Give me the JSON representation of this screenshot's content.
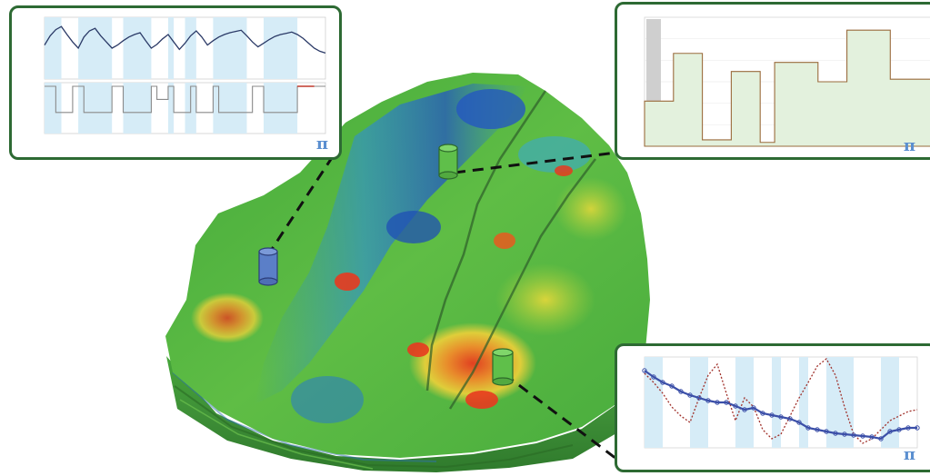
{
  "colors": {
    "panel_border": "#2d6a33",
    "shade": "#d6ecf7",
    "pressure_line": "#2b3a67",
    "rate_line": "#8a8a8a",
    "hist_fill": "#e3f1dd",
    "hist_line": "#9a6b3c",
    "hist_grey": "#cfcfcf",
    "match_points": "#3b4fa8",
    "match_dotted": "#a0302a",
    "logo": "#5b8fd0"
  },
  "icons": {
    "logo": "pi-logo-icon",
    "well": "well-cylinder-icon"
  },
  "logo_glyph": "π",
  "wells": [
    {
      "name": "well-blue",
      "color": "#5b7fc8"
    },
    {
      "name": "well-green-top",
      "color": "#5fbf4a"
    },
    {
      "name": "well-green-bottom",
      "color": "#5fbf4a"
    }
  ],
  "chart_data": [
    {
      "type": "line",
      "panel": "top-left",
      "x": [
        0,
        1,
        2,
        3,
        4,
        5,
        6,
        7,
        8,
        9,
        10,
        11,
        12,
        13,
        14,
        15,
        16,
        17,
        18,
        19,
        20,
        21,
        22,
        23,
        24,
        25,
        26,
        27,
        28,
        29,
        30,
        31,
        32,
        33,
        34,
        35,
        36,
        37,
        38,
        39,
        40,
        41,
        42,
        43,
        44,
        45,
        46,
        47,
        48,
        49,
        50
      ],
      "series": [
        {
          "values": [
            0.55,
            0.7,
            0.8,
            0.85,
            0.72,
            0.6,
            0.5,
            0.68,
            0.78,
            0.82,
            0.7,
            0.6,
            0.5,
            0.55,
            0.62,
            0.68,
            0.72,
            0.75,
            0.62,
            0.5,
            0.56,
            0.65,
            0.72,
            0.6,
            0.48,
            0.58,
            0.7,
            0.78,
            0.68,
            0.55,
            0.62,
            0.68,
            0.72,
            0.75,
            0.77,
            0.79,
            0.7,
            0.6,
            0.52,
            0.58,
            0.64,
            0.69,
            0.72,
            0.74,
            0.76,
            0.72,
            0.66,
            0.58,
            0.5,
            0.45,
            0.42
          ]
        },
        {
          "values": [
            0.0,
            0.0,
            -0.6,
            -0.6,
            -0.6,
            0.0,
            0.0,
            -0.6,
            -0.6,
            -0.6,
            -0.6,
            -0.6,
            0.0,
            0.0,
            -0.6,
            -0.6,
            -0.6,
            -0.6,
            -0.6,
            0.0,
            -0.3,
            -0.3,
            0.0,
            -0.6,
            -0.6,
            -0.6,
            0.0,
            -0.6,
            -0.6,
            -0.6,
            0.0,
            -0.6,
            -0.6,
            -0.6,
            -0.6,
            -0.6,
            -0.6,
            0.0,
            0.0,
            -0.6,
            -0.6,
            -0.6,
            -0.6,
            -0.6,
            -0.6,
            0.0,
            0.0,
            0.0,
            0.0,
            0.0,
            0.0
          ]
        }
      ],
      "shaded_intervals": [
        [
          0,
          3
        ],
        [
          6,
          12
        ],
        [
          14,
          19
        ],
        [
          22,
          23
        ],
        [
          25,
          27
        ],
        [
          30,
          36
        ],
        [
          39,
          45
        ]
      ]
    },
    {
      "type": "area",
      "panel": "top-right",
      "x": [
        0,
        1,
        2,
        3,
        4,
        5,
        6,
        7,
        8,
        9,
        10,
        11,
        12,
        13,
        14,
        15,
        16,
        17,
        18,
        19,
        20
      ],
      "values": [
        0.35,
        0.35,
        0.72,
        0.72,
        0.05,
        0.05,
        0.58,
        0.58,
        0.03,
        0.65,
        0.65,
        0.65,
        0.5,
        0.5,
        0.9,
        0.9,
        0.9,
        0.52,
        0.52,
        0.52,
        0.52
      ],
      "ylim": [
        0,
        1
      ]
    },
    {
      "type": "line",
      "panel": "bottom-right",
      "x": [
        0,
        1,
        2,
        3,
        4,
        5,
        6,
        7,
        8,
        9,
        10,
        11,
        12,
        13,
        14,
        15,
        16,
        17,
        18,
        19,
        20,
        21,
        22,
        23,
        24,
        25,
        26,
        27,
        28,
        29,
        30
      ],
      "series": [
        {
          "values": [
            0.85,
            0.78,
            0.72,
            0.68,
            0.62,
            0.58,
            0.55,
            0.52,
            0.5,
            0.5,
            0.46,
            0.42,
            0.44,
            0.38,
            0.36,
            0.34,
            0.32,
            0.28,
            0.22,
            0.2,
            0.18,
            0.16,
            0.15,
            0.14,
            0.13,
            0.12,
            0.1,
            0.18,
            0.2,
            0.22,
            0.22
          ]
        },
        {
          "values": [
            0.82,
            0.72,
            0.6,
            0.45,
            0.35,
            0.28,
            0.55,
            0.8,
            0.92,
            0.6,
            0.3,
            0.55,
            0.45,
            0.2,
            0.1,
            0.15,
            0.35,
            0.55,
            0.72,
            0.9,
            0.98,
            0.8,
            0.45,
            0.15,
            0.05,
            0.1,
            0.2,
            0.3,
            0.35,
            0.4,
            0.42
          ]
        }
      ],
      "shaded_intervals": [
        [
          0,
          2
        ],
        [
          5,
          7
        ],
        [
          10,
          12
        ],
        [
          14,
          15
        ],
        [
          17,
          18
        ],
        [
          20,
          23
        ],
        [
          26,
          28
        ]
      ]
    }
  ]
}
